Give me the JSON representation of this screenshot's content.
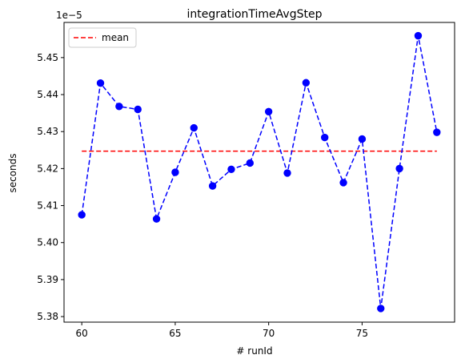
{
  "chart_data": {
    "type": "line",
    "title": "integrationTimeAvgStep",
    "xlabel": "# runId",
    "ylabel": "seconds",
    "offset_text": "1e−5",
    "xlim": [
      59.05,
      79.95
    ],
    "ylim": [
      5.3785,
      5.4595
    ],
    "x_ticks": [
      60,
      65,
      70,
      75
    ],
    "y_ticks": [
      5.38,
      5.39,
      5.4,
      5.41,
      5.42,
      5.43,
      5.44,
      5.45
    ],
    "y_tick_labels": [
      "5.38",
      "5.39",
      "5.40",
      "5.41",
      "5.42",
      "5.43",
      "5.44",
      "5.45"
    ],
    "grid": false,
    "legend": {
      "placement": "upper-left",
      "entries": [
        {
          "label": "mean",
          "color": "#ff0000",
          "style": "dashed"
        }
      ]
    },
    "series": [
      {
        "color": "#0000ff",
        "style": "dashed-with-circle-markers",
        "x": [
          60,
          61,
          62,
          63,
          64,
          65,
          66,
          67,
          68,
          69,
          70,
          71,
          72,
          73,
          74,
          75,
          76,
          77,
          78,
          79
        ],
        "values": [
          5.4075,
          5.4431,
          5.4368,
          5.436,
          5.4064,
          5.419,
          5.431,
          5.4153,
          5.4198,
          5.4215,
          5.4354,
          5.4188,
          5.4432,
          5.4284,
          5.4162,
          5.428,
          5.3822,
          5.42,
          5.4559,
          5.4298
        ]
      },
      {
        "name": "mean",
        "color": "#ff0000",
        "style": "dashed",
        "x": [
          60,
          79
        ],
        "values": [
          5.4247,
          5.4247
        ]
      }
    ]
  }
}
